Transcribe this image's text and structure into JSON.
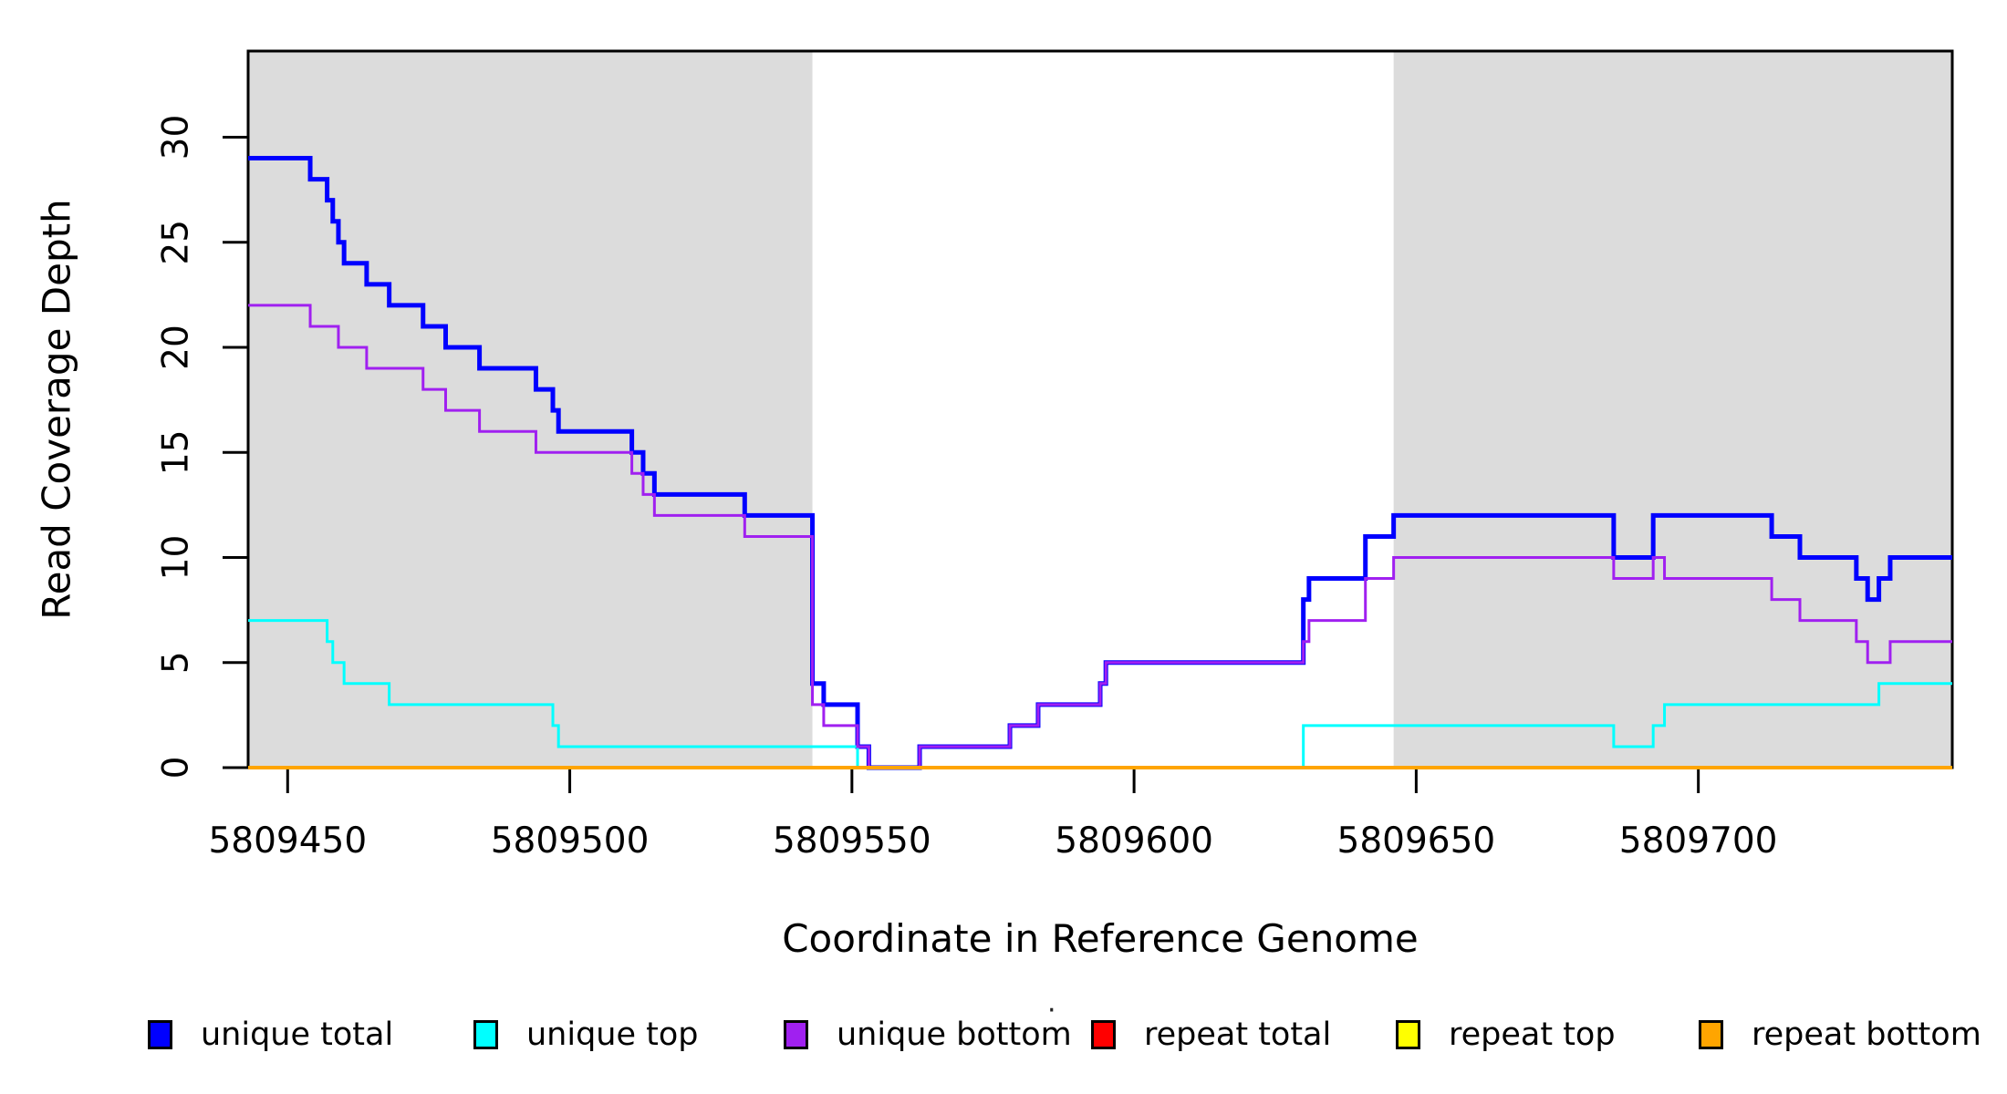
{
  "figure": {
    "y_axis_label": "Read Coverage Depth",
    "x_axis_label": "Coordinate in Reference Genome"
  },
  "legend": {
    "stray_mark": "·",
    "items": [
      {
        "label": "unique total",
        "color": "#0000ff"
      },
      {
        "label": "unique top",
        "color": "#00ffff"
      },
      {
        "label": "unique bottom",
        "color": "#a020f0"
      },
      {
        "label": "repeat total",
        "color": "#ff0000"
      },
      {
        "label": "repeat top",
        "color": "#ffff00"
      },
      {
        "label": "repeat bottom",
        "color": "#ffa500"
      }
    ]
  },
  "chart_data": {
    "type": "line",
    "step_type": "step-after",
    "title": "",
    "xlabel": "Coordinate in Reference Genome",
    "ylabel": "Read Coverage Depth",
    "xlim": [
      5809443,
      5809745
    ],
    "ylim": [
      0,
      34.1
    ],
    "x_ticks": [
      5809450,
      5809500,
      5809550,
      5809600,
      5809650,
      5809700
    ],
    "y_ticks": [
      0,
      5,
      10,
      15,
      20,
      25,
      30
    ],
    "grid": false,
    "legend_position": "bottom",
    "shade_color": "#dcdcdc",
    "shaded_regions": [
      [
        5809443,
        5809543
      ],
      [
        5809646,
        5809745
      ]
    ],
    "series": [
      {
        "name": "unique total",
        "color": "#0000ff",
        "width": 5,
        "points": [
          [
            5809443,
            29
          ],
          [
            5809454,
            28
          ],
          [
            5809457,
            27
          ],
          [
            5809458,
            26
          ],
          [
            5809459,
            25
          ],
          [
            5809460,
            24
          ],
          [
            5809464,
            23
          ],
          [
            5809468,
            22
          ],
          [
            5809474,
            21
          ],
          [
            5809478,
            20
          ],
          [
            5809484,
            19
          ],
          [
            5809494,
            18
          ],
          [
            5809497,
            17
          ],
          [
            5809498,
            16
          ],
          [
            5809511,
            15
          ],
          [
            5809513,
            14
          ],
          [
            5809515,
            13
          ],
          [
            5809531,
            12
          ],
          [
            5809543,
            4
          ],
          [
            5809545,
            3
          ],
          [
            5809551,
            1
          ],
          [
            5809553,
            0
          ],
          [
            5809562,
            1
          ],
          [
            5809578,
            2
          ],
          [
            5809583,
            3
          ],
          [
            5809594,
            4
          ],
          [
            5809595,
            5
          ],
          [
            5809630,
            8
          ],
          [
            5809631,
            9
          ],
          [
            5809641,
            11
          ],
          [
            5809646,
            12
          ],
          [
            5809685,
            10
          ],
          [
            5809692,
            12
          ],
          [
            5809713,
            11
          ],
          [
            5809718,
            10
          ],
          [
            5809728,
            9
          ],
          [
            5809730,
            8
          ],
          [
            5809732,
            9
          ],
          [
            5809734,
            10
          ],
          [
            5809745,
            10
          ]
        ]
      },
      {
        "name": "unique top",
        "color": "#00ffff",
        "width": 3,
        "points": [
          [
            5809443,
            7
          ],
          [
            5809457,
            6
          ],
          [
            5809458,
            5
          ],
          [
            5809460,
            4
          ],
          [
            5809468,
            3
          ],
          [
            5809497,
            2
          ],
          [
            5809498,
            1
          ],
          [
            5809551,
            0
          ],
          [
            5809630,
            2
          ],
          [
            5809685,
            1
          ],
          [
            5809692,
            2
          ],
          [
            5809694,
            3
          ],
          [
            5809732,
            4
          ],
          [
            5809745,
            4
          ]
        ]
      },
      {
        "name": "unique bottom",
        "color": "#a020f0",
        "width": 3,
        "points": [
          [
            5809443,
            22
          ],
          [
            5809454,
            21
          ],
          [
            5809459,
            20
          ],
          [
            5809464,
            19
          ],
          [
            5809474,
            18
          ],
          [
            5809478,
            17
          ],
          [
            5809484,
            16
          ],
          [
            5809494,
            15
          ],
          [
            5809511,
            14
          ],
          [
            5809513,
            13
          ],
          [
            5809515,
            12
          ],
          [
            5809531,
            11
          ],
          [
            5809543,
            3
          ],
          [
            5809545,
            2
          ],
          [
            5809551,
            1
          ],
          [
            5809553,
            0
          ],
          [
            5809562,
            1
          ],
          [
            5809578,
            2
          ],
          [
            5809583,
            3
          ],
          [
            5809594,
            4
          ],
          [
            5809595,
            5
          ],
          [
            5809630,
            6
          ],
          [
            5809631,
            7
          ],
          [
            5809641,
            9
          ],
          [
            5809646,
            10
          ],
          [
            5809685,
            9
          ],
          [
            5809692,
            10
          ],
          [
            5809694,
            9
          ],
          [
            5809713,
            8
          ],
          [
            5809718,
            7
          ],
          [
            5809728,
            6
          ],
          [
            5809730,
            5
          ],
          [
            5809734,
            6
          ],
          [
            5809745,
            6
          ]
        ]
      },
      {
        "name": "repeat total",
        "color": "#ff0000",
        "width": 3,
        "points": [
          [
            5809443,
            0
          ],
          [
            5809745,
            0
          ]
        ]
      },
      {
        "name": "repeat top",
        "color": "#ffff00",
        "width": 3,
        "points": [
          [
            5809443,
            0
          ],
          [
            5809745,
            0
          ]
        ]
      },
      {
        "name": "repeat bottom",
        "color": "#ffa500",
        "width": 4,
        "points": [
          [
            5809443,
            0
          ],
          [
            5809745,
            0
          ]
        ]
      }
    ]
  }
}
